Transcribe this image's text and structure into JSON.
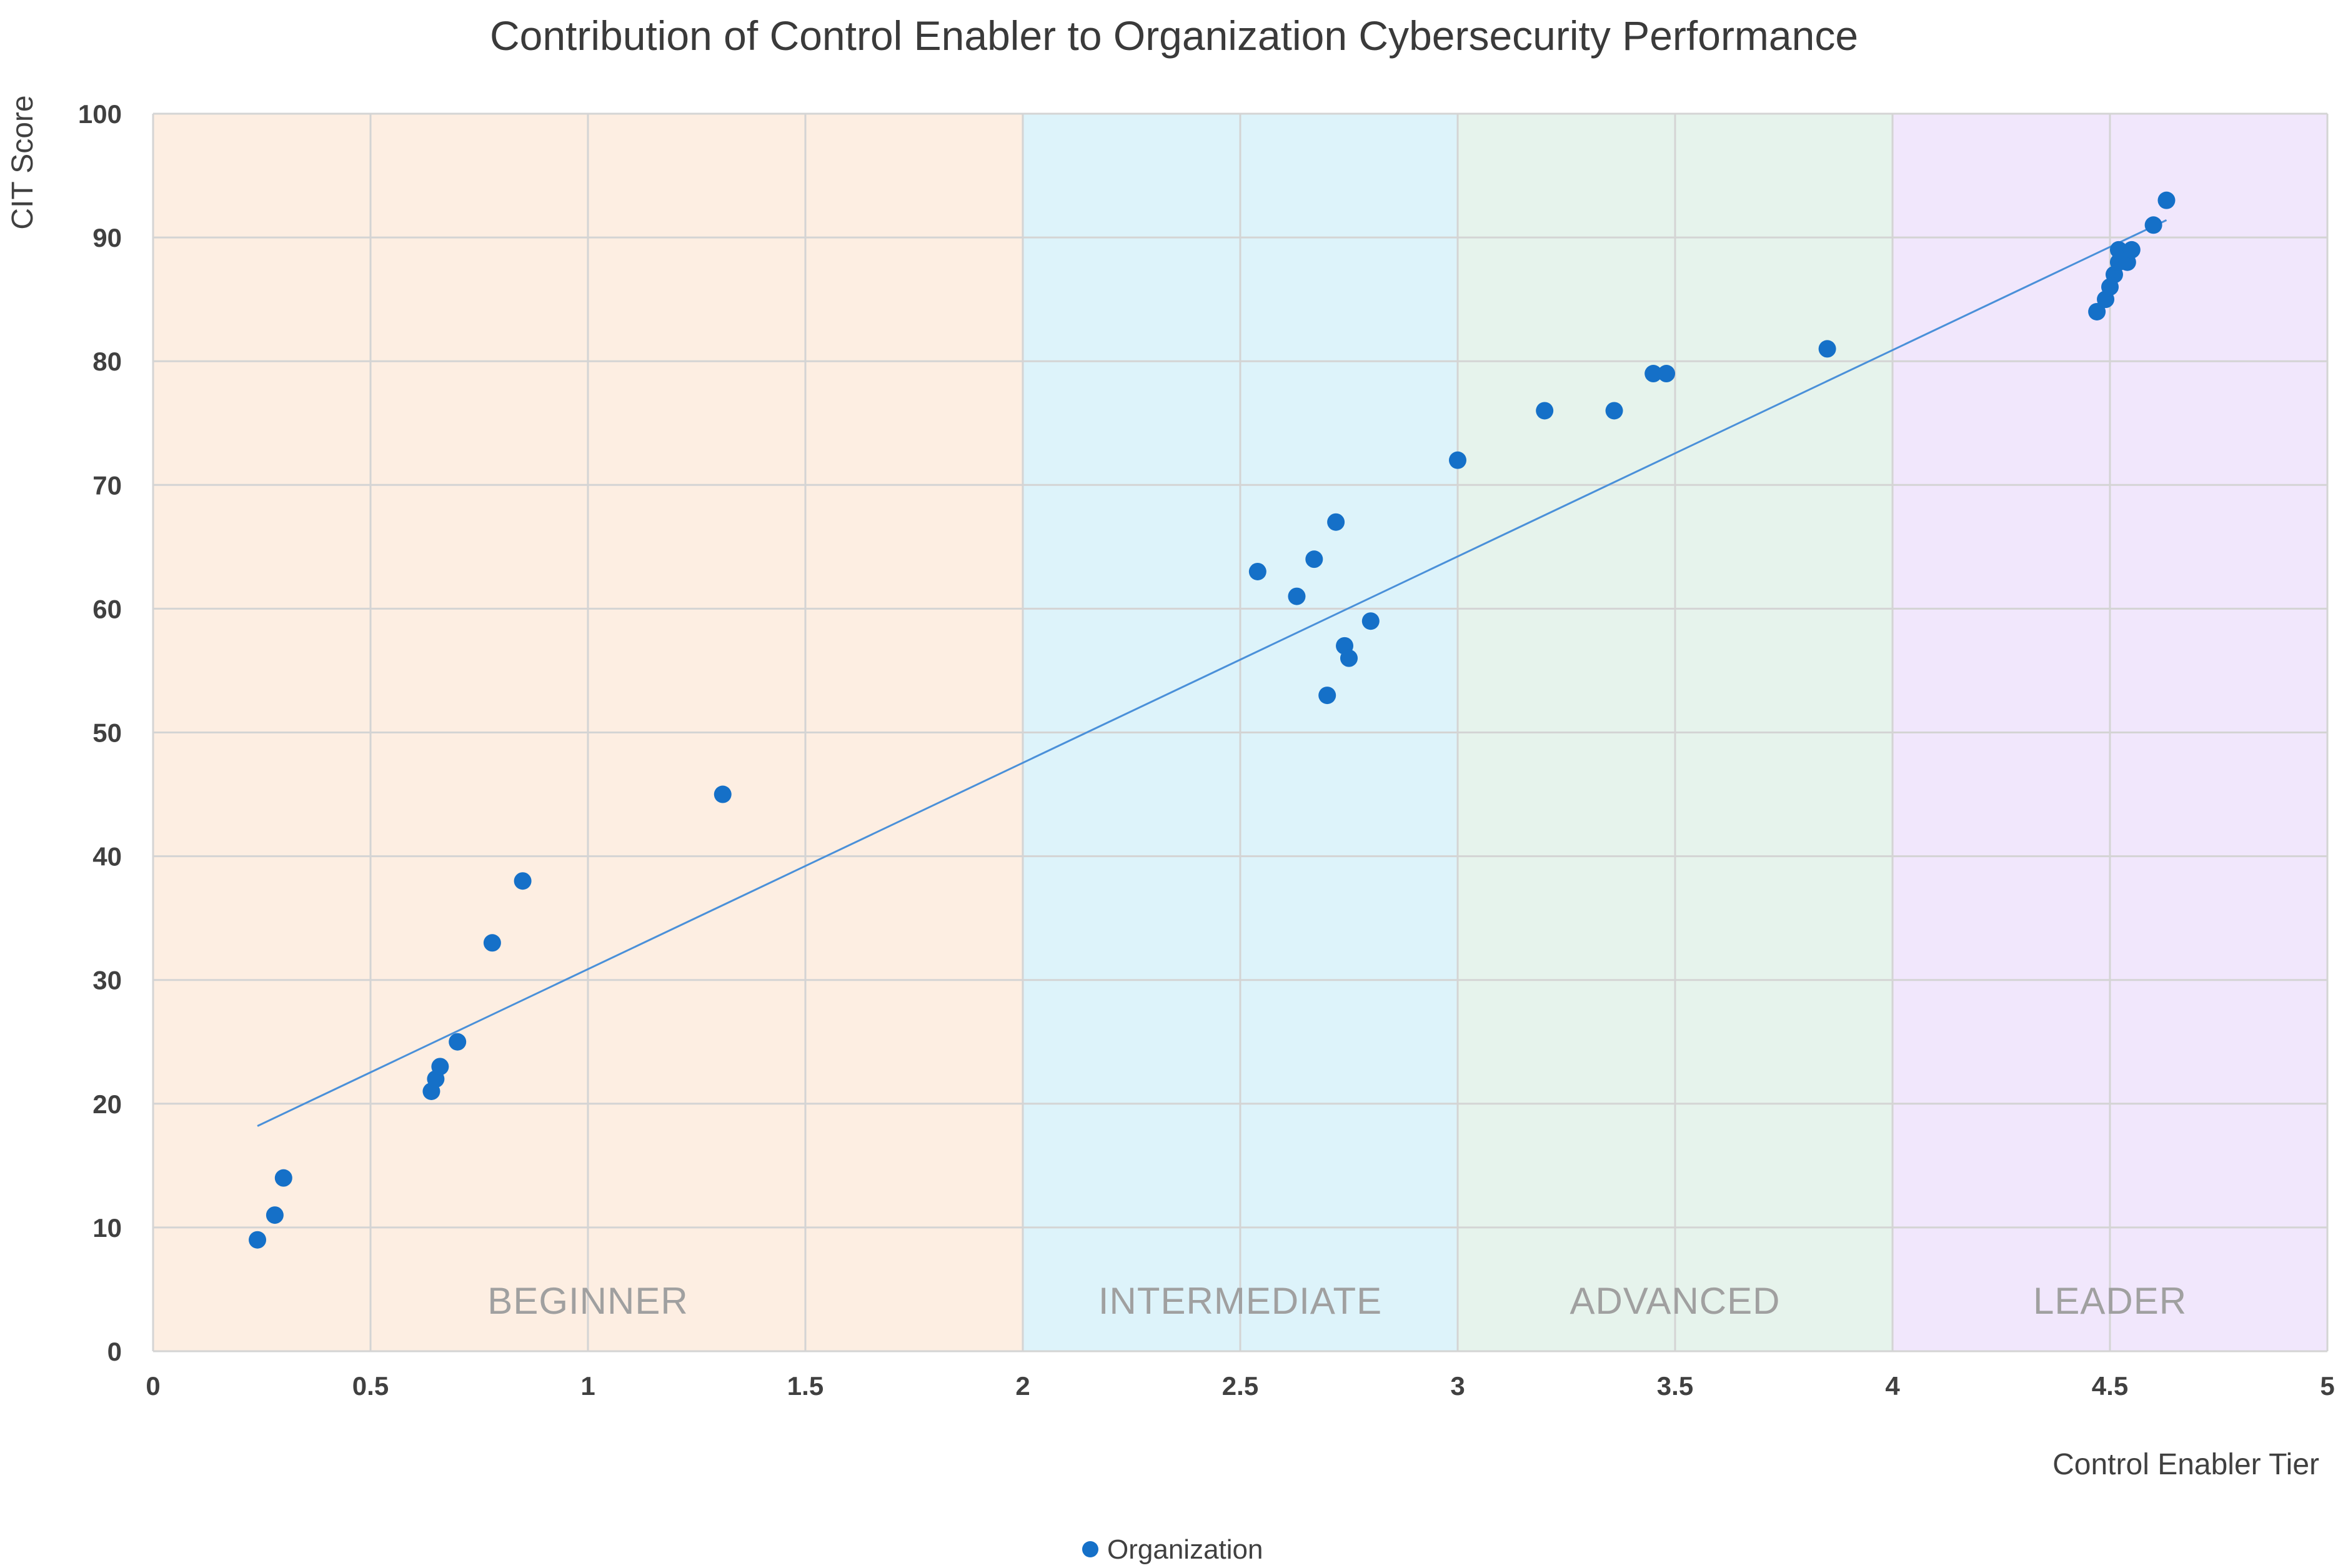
{
  "chart_data": {
    "type": "scatter",
    "title": "Contribution of Control Enabler to Organization Cybersecurity Performance",
    "xlabel": "Control Enabler Tier",
    "ylabel": "CIT Score",
    "xlim": [
      0,
      5
    ],
    "ylim": [
      0,
      100
    ],
    "x_ticks": [
      "0",
      "0.5",
      "1",
      "1.5",
      "2",
      "2.5",
      "3",
      "3.5",
      "4",
      "4.5",
      "5"
    ],
    "y_ticks": [
      "0",
      "10",
      "20",
      "30",
      "40",
      "50",
      "60",
      "70",
      "80",
      "90",
      "100"
    ],
    "grid": true,
    "legend_position": "bottom",
    "regions": [
      {
        "label": "BEGINNER",
        "x_start": 0,
        "x_end": 2,
        "color": "#fdeee2"
      },
      {
        "label": "INTERMEDIATE",
        "x_start": 2,
        "x_end": 3,
        "color": "#ddf3fa"
      },
      {
        "label": "ADVANCED",
        "x_start": 3,
        "x_end": 4,
        "color": "#e6f3ec"
      },
      {
        "label": "LEADER",
        "x_start": 4,
        "x_end": 5,
        "color": "#f1e7fc"
      }
    ],
    "series": [
      {
        "name": "Organization",
        "color": "#1570c8",
        "x": [
          0.24,
          0.28,
          0.3,
          0.64,
          0.65,
          0.66,
          0.7,
          0.78,
          0.85,
          1.31,
          2.54,
          2.63,
          2.67,
          2.7,
          2.72,
          2.74,
          2.75,
          2.8,
          3.0,
          3.2,
          3.36,
          3.45,
          3.48,
          3.85,
          4.47,
          4.49,
          4.5,
          4.51,
          4.52,
          4.52,
          4.54,
          4.55,
          4.6,
          4.63
        ],
        "y": [
          9,
          11,
          14,
          21,
          22,
          23,
          25,
          33,
          38,
          45,
          63,
          61,
          64,
          53,
          67,
          57,
          56,
          59,
          72,
          76,
          76,
          79,
          79,
          81,
          84,
          85,
          86,
          87,
          88,
          89,
          88,
          89,
          91,
          93
        ]
      }
    ],
    "trendline": {
      "type": "linear",
      "color": "#4a90d9",
      "x": [
        0.24,
        4.63
      ],
      "y": [
        18.2,
        91.4
      ]
    }
  }
}
